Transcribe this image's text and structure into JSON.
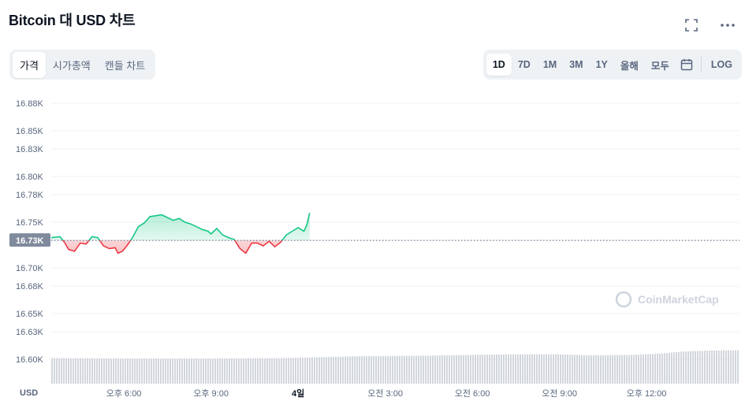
{
  "header": {
    "title": "Bitcoin 대 USD 차트"
  },
  "icons": {
    "fullscreen": "fullscreen-icon",
    "more": "more-horizontal-icon",
    "calendar": "calendar-icon"
  },
  "tabs": [
    {
      "label": "가격",
      "active": true
    },
    {
      "label": "시가총액",
      "active": false
    },
    {
      "label": "캔들 차트",
      "active": false
    }
  ],
  "ranges": [
    {
      "label": "1D",
      "active": true
    },
    {
      "label": "7D",
      "active": false
    },
    {
      "label": "1M",
      "active": false
    },
    {
      "label": "3M",
      "active": false
    },
    {
      "label": "1Y",
      "active": false
    },
    {
      "label": "올해",
      "active": false
    },
    {
      "label": "모두",
      "active": false
    }
  ],
  "log_label": "LOG",
  "colors": {
    "up": "#16c784",
    "down": "#ea3943",
    "grid": "#eff2f5",
    "volume": "#d2d6dc",
    "label_bg": "#808a9d"
  },
  "chart_data": {
    "type": "line",
    "title": "",
    "currency_label": "USD",
    "baseline_value": 16730,
    "baseline_label": "16.73K",
    "watermark": "CoinMarketCap",
    "ylim": [
      16600,
      16880
    ],
    "yticks": [
      {
        "value": 16880,
        "label": "16.88K"
      },
      {
        "value": 16850,
        "label": "16.85K"
      },
      {
        "value": 16830,
        "label": "16.83K"
      },
      {
        "value": 16800,
        "label": "16.80K"
      },
      {
        "value": 16780,
        "label": "16.78K"
      },
      {
        "value": 16750,
        "label": "16.75K"
      },
      {
        "value": 16730,
        "label": "16.73K"
      },
      {
        "value": 16700,
        "label": "16.70K"
      },
      {
        "value": 16680,
        "label": "16.68K"
      },
      {
        "value": 16650,
        "label": "16.65K"
      },
      {
        "value": 16630,
        "label": "16.63K"
      },
      {
        "value": 16600,
        "label": "16.60K"
      }
    ],
    "xlim": [
      15.5,
      39.2
    ],
    "xticks": [
      {
        "value": 18,
        "label": "오후 6:00",
        "bold": false
      },
      {
        "value": 21,
        "label": "오후 9:00",
        "bold": false
      },
      {
        "value": 24,
        "label": "4일",
        "bold": true
      },
      {
        "value": 27,
        "label": "오전 3:00",
        "bold": false
      },
      {
        "value": 30,
        "label": "오전 6:00",
        "bold": false
      },
      {
        "value": 33,
        "label": "오전 9:00",
        "bold": false
      },
      {
        "value": 36,
        "label": "오후 12:00",
        "bold": false
      }
    ],
    "series": [
      {
        "points": [
          [
            15.5,
            16733
          ],
          [
            15.8,
            16734
          ],
          [
            15.95,
            16728
          ],
          [
            16.1,
            16720
          ],
          [
            16.3,
            16718
          ],
          [
            16.5,
            16727
          ],
          [
            16.7,
            16726
          ],
          [
            16.9,
            16734
          ],
          [
            17.1,
            16733
          ],
          [
            17.3,
            16724
          ],
          [
            17.5,
            16721
          ],
          [
            17.7,
            16722
          ],
          [
            17.8,
            16716
          ],
          [
            17.95,
            16718
          ],
          [
            18.1,
            16724
          ],
          [
            18.3,
            16733
          ],
          [
            18.5,
            16745
          ],
          [
            18.7,
            16749
          ],
          [
            18.9,
            16756
          ],
          [
            19.1,
            16757
          ],
          [
            19.3,
            16758
          ],
          [
            19.5,
            16755
          ],
          [
            19.7,
            16752
          ],
          [
            19.9,
            16754
          ],
          [
            20.1,
            16750
          ],
          [
            20.3,
            16748
          ],
          [
            20.5,
            16745
          ],
          [
            20.7,
            16742
          ],
          [
            20.9,
            16740
          ],
          [
            21.0,
            16737
          ],
          [
            21.2,
            16743
          ],
          [
            21.4,
            16736
          ],
          [
            21.6,
            16733
          ],
          [
            21.8,
            16731
          ],
          [
            22.0,
            16721
          ],
          [
            22.2,
            16716
          ],
          [
            22.4,
            16727
          ],
          [
            22.6,
            16727
          ],
          [
            22.8,
            16724
          ],
          [
            23.0,
            16729
          ],
          [
            23.2,
            16723
          ],
          [
            23.4,
            16728
          ],
          [
            23.6,
            16736
          ],
          [
            23.8,
            16740
          ],
          [
            24.0,
            16744
          ],
          [
            24.2,
            16740
          ],
          [
            24.3,
            16747
          ],
          [
            24.4,
            16760
          ]
        ]
      }
    ],
    "volume": [
      [
        15.5,
        0.55
      ],
      [
        18.0,
        0.54
      ],
      [
        21.0,
        0.54
      ],
      [
        23.5,
        0.55
      ],
      [
        24.2,
        0.56
      ],
      [
        26.0,
        0.59
      ],
      [
        28.0,
        0.6
      ],
      [
        30.0,
        0.62
      ],
      [
        31.0,
        0.63
      ],
      [
        33.0,
        0.63
      ],
      [
        34.0,
        0.61
      ],
      [
        35.5,
        0.62
      ],
      [
        36.5,
        0.65
      ],
      [
        37.2,
        0.69
      ],
      [
        38.0,
        0.71
      ],
      [
        39.2,
        0.72
      ]
    ]
  }
}
